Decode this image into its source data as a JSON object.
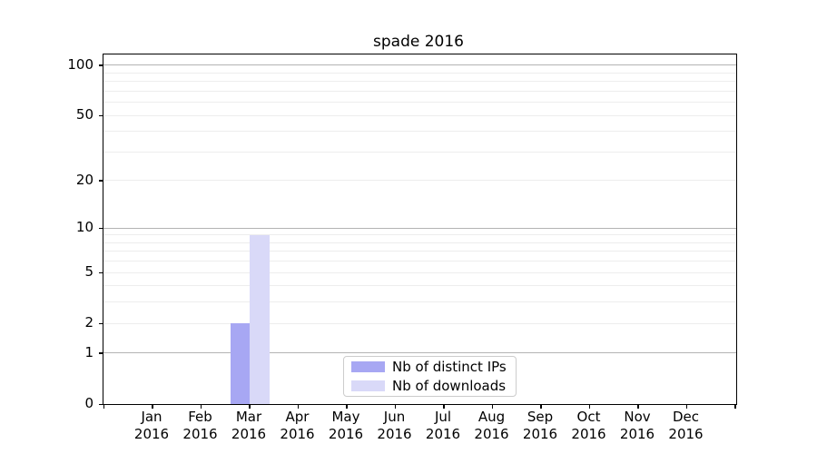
{
  "title": "spade 2016",
  "chart_data": {
    "type": "bar",
    "title": "spade 2016",
    "categories": [
      "Jan",
      "Feb",
      "Mar",
      "Apr",
      "May",
      "Jun",
      "Jul",
      "Aug",
      "Sep",
      "Oct",
      "Nov",
      "Dec"
    ],
    "category_year": "2016",
    "series": [
      {
        "name": "Nb of distinct IPs",
        "color": "#a7a7f3",
        "values": [
          0,
          0,
          2,
          0,
          0,
          0,
          0,
          0,
          0,
          0,
          0,
          0
        ]
      },
      {
        "name": "Nb of downloads",
        "color": "#d9d9f8",
        "values": [
          0,
          0,
          9,
          0,
          0,
          0,
          0,
          0,
          0,
          0,
          0,
          0
        ]
      }
    ],
    "yticks": [
      0,
      1,
      2,
      5,
      10,
      20,
      50,
      100
    ],
    "scale": "log10(1+x)",
    "ylim": [
      0,
      116
    ],
    "xlabel": "",
    "ylabel": "",
    "grid": "horizontal",
    "grid_major_values": [
      1,
      10,
      100
    ],
    "grid_minor_values": [
      2,
      3,
      4,
      5,
      6,
      7,
      8,
      9,
      20,
      30,
      40,
      50,
      60,
      70,
      80,
      90
    ],
    "legend_position": "lower center",
    "colors": {
      "spine": "#000000",
      "grid_major": "#b3b3b3",
      "grid_minor": "#ededed",
      "legend_border": "#cccccc",
      "background": "#ffffff"
    }
  }
}
